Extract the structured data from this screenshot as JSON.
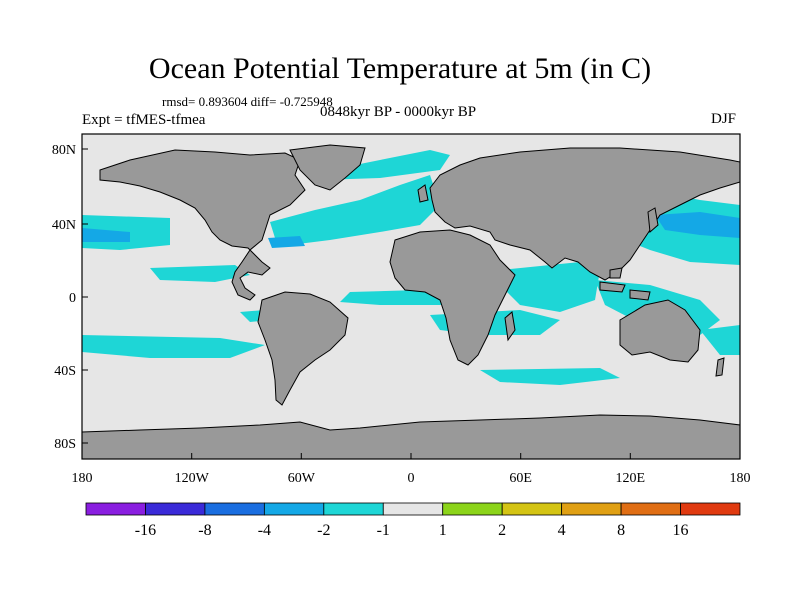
{
  "title": "Ocean Potential Temperature at 5m (in C)",
  "stats": "rmsd= 0.893604 diff= -0.725948",
  "experiment": "Expt = tfMES-tfmea",
  "period": "0848kyr BP - 0000kyr BP",
  "season": "DJF",
  "lat_labels": [
    "80N",
    "40N",
    "0",
    "40S",
    "80S"
  ],
  "lon_labels": [
    "180",
    "120W",
    "60W",
    "0",
    "60E",
    "120E",
    "180"
  ],
  "colorbar": {
    "colors": [
      "#8a1ee0",
      "#3a2ad8",
      "#1a6ee0",
      "#14a8e6",
      "#1ed6d6",
      "#e6e6e6",
      "#8cd41a",
      "#d4c414",
      "#e0a014",
      "#e06e14",
      "#e03a10"
    ],
    "labels": [
      "-16",
      "-8",
      "-4",
      "-2",
      "-1",
      "1",
      "2",
      "4",
      "8",
      "16"
    ]
  },
  "colors": {
    "land": "#999999",
    "ocean_neutral": "#e6e6e6",
    "cool_anomaly": "#1ed6d6",
    "strong_cool": "#14a8e6",
    "warm_anomaly": "#8cd41a"
  }
}
